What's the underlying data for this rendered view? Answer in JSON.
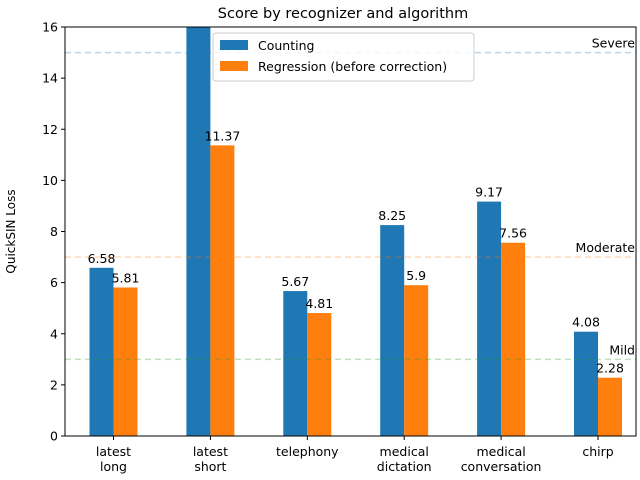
{
  "chart_data": {
    "type": "bar",
    "title": "Score by recognizer and algorithm",
    "xlabel": "",
    "ylabel": "QuickSIN Loss",
    "ylim": [
      0,
      16
    ],
    "yticks": [
      0,
      2,
      4,
      6,
      8,
      10,
      12,
      14,
      16
    ],
    "categories": [
      [
        "latest",
        "long"
      ],
      [
        "latest",
        "short"
      ],
      [
        "telephony"
      ],
      [
        "medical",
        "dictation"
      ],
      [
        "medical",
        "conversation"
      ],
      [
        "chirp"
      ]
    ],
    "series": [
      {
        "name": "Counting",
        "color": "#1f77b4",
        "values": [
          6.58,
          16.0,
          5.67,
          8.25,
          9.17,
          4.08
        ],
        "labels": [
          "6.58",
          "",
          "5.67",
          "8.25",
          "9.17",
          "4.08"
        ]
      },
      {
        "name": "Regression (before correction)",
        "color": "#ff7f0e",
        "values": [
          5.81,
          11.37,
          4.81,
          5.9,
          7.56,
          2.28
        ],
        "labels": [
          "5.81",
          "11.37",
          "4.81",
          "5.9",
          "7.56",
          "2.28"
        ]
      }
    ],
    "reference_lines": [
      {
        "label": "Severe",
        "value": 15,
        "color": "#1f77b4"
      },
      {
        "label": "Moderate",
        "value": 7,
        "color": "#ff7f0e"
      },
      {
        "label": "Mild",
        "value": 3,
        "color": "#2ca02c"
      }
    ],
    "legend": "top-center",
    "grid": false
  }
}
